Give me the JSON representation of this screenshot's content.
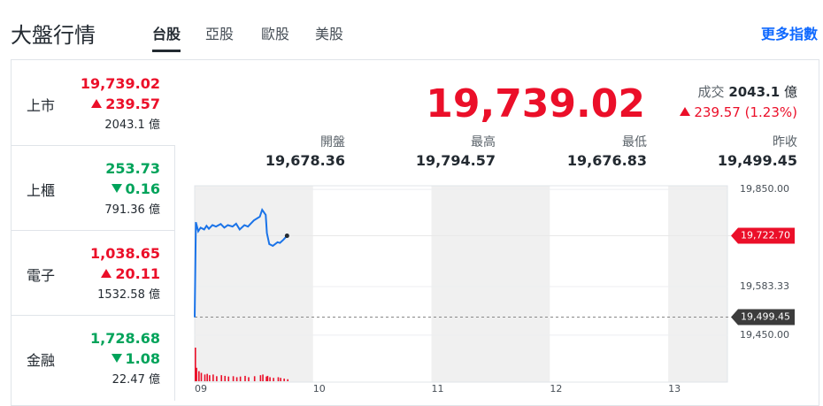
{
  "header": {
    "title": "大盤行情",
    "tabs": [
      "台股",
      "亞股",
      "歐股",
      "美股"
    ],
    "active_tab": 0,
    "more_link": "更多指數"
  },
  "index_list": [
    {
      "name": "上市",
      "price": "19,739.02",
      "change": "239.57",
      "volume": "2043.1",
      "unit": "億",
      "direction": "up",
      "color": "#eb0f29"
    },
    {
      "name": "上櫃",
      "price": "253.73",
      "change": "0.16",
      "volume": "791.36",
      "unit": "億",
      "direction": "down",
      "color": "#00a35a"
    },
    {
      "name": "電子",
      "price": "1,038.65",
      "change": "20.11",
      "volume": "1532.58",
      "unit": "億",
      "direction": "up",
      "color": "#eb0f29"
    },
    {
      "name": "金融",
      "price": "1,728.68",
      "change": "1.08",
      "volume": "22.47",
      "unit": "億",
      "direction": "down",
      "color": "#00a35a"
    }
  ],
  "quote": {
    "price": "19,739.02",
    "volume_label": "成交",
    "volume": "2043.1",
    "unit": "億",
    "change": "239.57",
    "percent": "(1.23%)",
    "direction": "up",
    "color": "#eb0f29",
    "stats": [
      {
        "label": "開盤",
        "value": "19,678.36"
      },
      {
        "label": "最高",
        "value": "19,794.57"
      },
      {
        "label": "最低",
        "value": "19,676.83"
      },
      {
        "label": "昨收",
        "value": "19,499.45"
      }
    ]
  },
  "chart_data": {
    "type": "line",
    "color": "#1a73e8",
    "x": [
      9.0,
      9.01,
      9.03,
      9.05,
      9.08,
      9.1,
      9.12,
      9.15,
      9.18,
      9.22,
      9.25,
      9.28,
      9.32,
      9.35,
      9.38,
      9.42,
      9.45,
      9.5,
      9.55,
      9.57,
      9.6,
      9.61,
      9.63,
      9.66,
      9.7,
      9.72,
      9.75,
      9.78
    ],
    "values": [
      19499,
      19760,
      19735,
      19745,
      19740,
      19750,
      19742,
      19752,
      19748,
      19755,
      19745,
      19752,
      19748,
      19756,
      19740,
      19752,
      19748,
      19765,
      19775,
      19794,
      19780,
      19730,
      19700,
      19695,
      19705,
      19703,
      19712,
      19722.7
    ],
    "volume": {
      "values": [
        100,
        40,
        30,
        25,
        20,
        22,
        18,
        20,
        15,
        18,
        16,
        14,
        15,
        12,
        14,
        16,
        12,
        15,
        18,
        20,
        14,
        16,
        12,
        10,
        12,
        10,
        8,
        6
      ],
      "color": "#eb0f29"
    },
    "xlim": [
      9,
      13.5
    ],
    "xticks": [
      {
        "value": 9,
        "label": "09"
      },
      10,
      11,
      12,
      13
    ],
    "ylim": [
      19440,
      19860
    ],
    "yticks": [
      {
        "value": 19850,
        "label": "19,850.00"
      },
      {
        "value": 19583.33,
        "label": "19,583.33"
      },
      {
        "value": 19450,
        "label": "19,450.00"
      }
    ],
    "price_tags": [
      {
        "value": 19722.7,
        "label": "19,722.70",
        "color": "#eb0f29",
        "line_style": "solid"
      },
      {
        "value": 19499.45,
        "label": "19,499.45",
        "color": "#3c3c3c",
        "line_style": "dashed"
      }
    ]
  }
}
